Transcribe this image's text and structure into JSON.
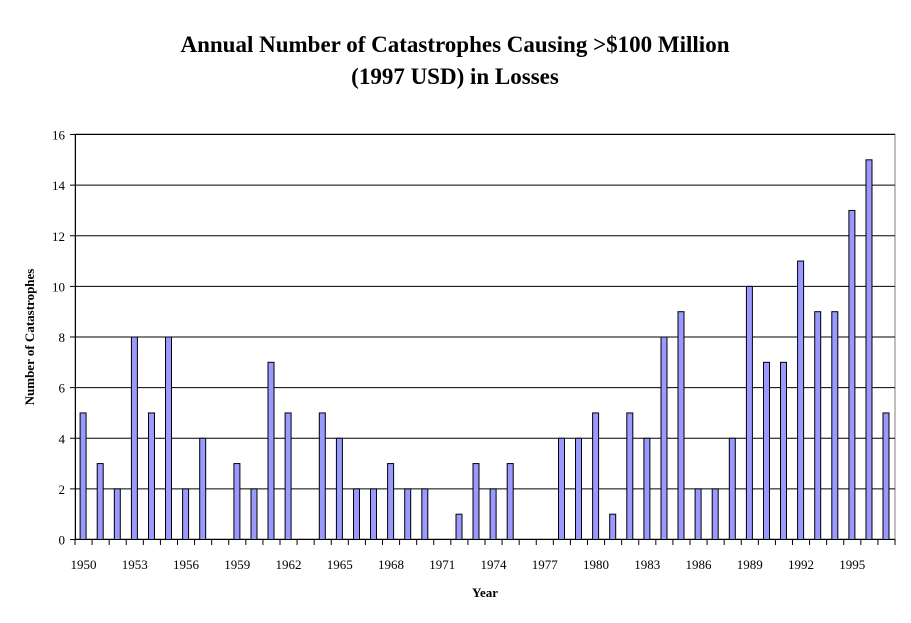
{
  "chart_data": {
    "type": "bar",
    "title": [
      "Annual Number of Catastrophes Causing >$100 Million",
      "(1997 USD) in Losses"
    ],
    "xlabel": "Year",
    "ylabel": "Number of Catastrophes",
    "ylim": [
      0,
      16
    ],
    "yticks": [
      0,
      2,
      4,
      6,
      8,
      10,
      12,
      14,
      16
    ],
    "grid": true,
    "bar_color": "#9999ff",
    "categories": [
      1950,
      1951,
      1952,
      1953,
      1954,
      1955,
      1956,
      1957,
      1958,
      1959,
      1960,
      1961,
      1962,
      1963,
      1964,
      1965,
      1966,
      1967,
      1968,
      1969,
      1970,
      1971,
      1972,
      1973,
      1974,
      1975,
      1976,
      1977,
      1978,
      1979,
      1980,
      1981,
      1982,
      1983,
      1984,
      1985,
      1986,
      1987,
      1988,
      1989,
      1990,
      1991,
      1992,
      1993,
      1994,
      1995,
      1996,
      1997
    ],
    "xtick_labels": [
      "1950",
      "1953",
      "1956",
      "1959",
      "1962",
      "1965",
      "1968",
      "1971",
      "1974",
      "1977",
      "1980",
      "1983",
      "1986",
      "1989",
      "1992",
      "1995"
    ],
    "values": [
      5,
      3,
      2,
      8,
      5,
      8,
      2,
      4,
      0,
      3,
      2,
      7,
      5,
      0,
      5,
      4,
      2,
      2,
      3,
      2,
      2,
      0,
      1,
      3,
      2,
      3,
      0,
      0,
      4,
      4,
      5,
      1,
      5,
      4,
      8,
      9,
      2,
      2,
      4,
      10,
      7,
      7,
      11,
      9,
      9,
      13,
      15,
      5
    ]
  }
}
